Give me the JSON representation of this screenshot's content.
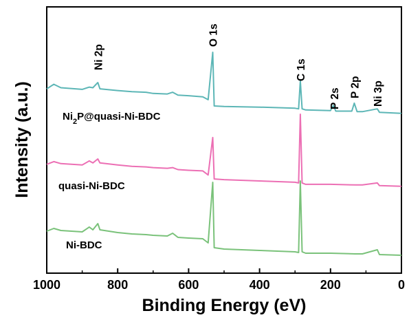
{
  "chart_data": {
    "type": "line",
    "title": "",
    "xlabel": "Binding Energy (eV)",
    "ylabel": "Intensity (a.u.)",
    "xlim": [
      1000,
      0
    ],
    "x_reversed": true,
    "xticks": [
      "1000",
      "800",
      "600",
      "400",
      "200",
      "0"
    ],
    "grid": false,
    "legend": "none",
    "series": [
      {
        "name": "Ni-BDC",
        "name_parts": [
          "Ni-BDC"
        ],
        "color": "#7ac27a",
        "points": [
          [
            1000,
            0.27
          ],
          [
            980,
            0.31
          ],
          [
            960,
            0.28
          ],
          [
            900,
            0.26
          ],
          [
            880,
            0.33
          ],
          [
            870,
            0.29
          ],
          [
            856,
            0.38
          ],
          [
            850,
            0.29
          ],
          [
            800,
            0.25
          ],
          [
            760,
            0.23
          ],
          [
            720,
            0.22
          ],
          [
            700,
            0.21
          ],
          [
            660,
            0.2
          ],
          [
            645,
            0.24
          ],
          [
            630,
            0.18
          ],
          [
            600,
            0.17
          ],
          [
            560,
            0.16
          ],
          [
            545,
            0.1
          ],
          [
            532,
            0.98
          ],
          [
            528,
            0.03
          ],
          [
            500,
            0.01
          ],
          [
            400,
            -0.01
          ],
          [
            300,
            -0.03
          ],
          [
            290,
            -0.04
          ],
          [
            285,
            1.0
          ],
          [
            280,
            -0.03
          ],
          [
            270,
            -0.05
          ],
          [
            200,
            -0.05
          ],
          [
            130,
            -0.06
          ],
          [
            110,
            -0.06
          ],
          [
            68,
            0.0
          ],
          [
            62,
            -0.07
          ],
          [
            0,
            -0.08
          ]
        ]
      },
      {
        "name": "quasi-Ni-BDC",
        "name_parts": [
          "quasi-Ni-BDC"
        ],
        "color": "#ec6fb4",
        "points": [
          [
            1000,
            0.25
          ],
          [
            980,
            0.29
          ],
          [
            960,
            0.26
          ],
          [
            900,
            0.24
          ],
          [
            880,
            0.3
          ],
          [
            870,
            0.27
          ],
          [
            856,
            0.33
          ],
          [
            850,
            0.27
          ],
          [
            800,
            0.24
          ],
          [
            760,
            0.22
          ],
          [
            720,
            0.21
          ],
          [
            700,
            0.2
          ],
          [
            660,
            0.19
          ],
          [
            645,
            0.2
          ],
          [
            630,
            0.17
          ],
          [
            600,
            0.16
          ],
          [
            560,
            0.15
          ],
          [
            545,
            0.09
          ],
          [
            532,
            0.65
          ],
          [
            528,
            0.03
          ],
          [
            500,
            0.02
          ],
          [
            400,
            0.0
          ],
          [
            300,
            -0.02
          ],
          [
            290,
            -0.03
          ],
          [
            285,
            1.0
          ],
          [
            280,
            -0.03
          ],
          [
            270,
            -0.05
          ],
          [
            200,
            -0.05
          ],
          [
            130,
            -0.06
          ],
          [
            110,
            -0.06
          ],
          [
            68,
            -0.03
          ],
          [
            62,
            -0.07
          ],
          [
            0,
            -0.08
          ]
        ]
      },
      {
        "name": "Ni₂P@quasi-Ni-BDC",
        "name_parts": [
          "Ni",
          "2",
          "P@quasi-Ni-BDC"
        ],
        "color": "#5cb6b6",
        "points": [
          [
            1000,
            0.36
          ],
          [
            980,
            0.44
          ],
          [
            960,
            0.38
          ],
          [
            900,
            0.35
          ],
          [
            880,
            0.39
          ],
          [
            870,
            0.38
          ],
          [
            856,
            0.47
          ],
          [
            850,
            0.36
          ],
          [
            800,
            0.33
          ],
          [
            760,
            0.31
          ],
          [
            720,
            0.3
          ],
          [
            700,
            0.28
          ],
          [
            660,
            0.27
          ],
          [
            645,
            0.3
          ],
          [
            630,
            0.25
          ],
          [
            600,
            0.24
          ],
          [
            560,
            0.22
          ],
          [
            545,
            0.17
          ],
          [
            532,
            1.0
          ],
          [
            528,
            0.06
          ],
          [
            500,
            0.05
          ],
          [
            400,
            0.04
          ],
          [
            300,
            0.02
          ],
          [
            290,
            0.01
          ],
          [
            285,
            0.5
          ],
          [
            280,
            0.01
          ],
          [
            270,
            -0.01
          ],
          [
            200,
            -0.02
          ],
          [
            192,
            0.07
          ],
          [
            185,
            -0.03
          ],
          [
            140,
            -0.03
          ],
          [
            133,
            0.11
          ],
          [
            125,
            -0.04
          ],
          [
            110,
            -0.04
          ],
          [
            68,
            0.01
          ],
          [
            62,
            -0.05
          ],
          [
            0,
            -0.07
          ]
        ]
      }
    ],
    "peak_labels": [
      {
        "text": "Ni 2p",
        "x": 856
      },
      {
        "text": "O 1s",
        "x": 532
      },
      {
        "text": "C 1s",
        "x": 285
      },
      {
        "text": "P 2s",
        "x": 190
      },
      {
        "text": "P 2p",
        "x": 133
      },
      {
        "text": "Ni 3p",
        "x": 68
      }
    ]
  }
}
